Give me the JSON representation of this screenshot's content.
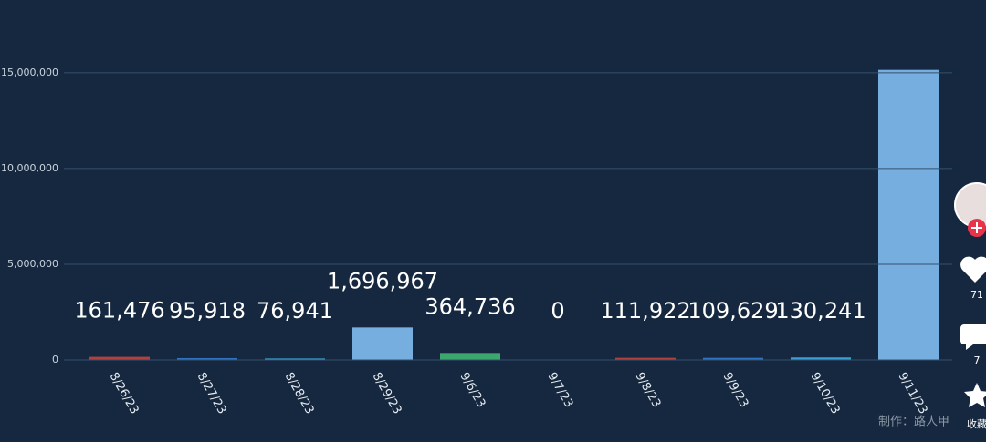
{
  "chart_data": {
    "type": "bar",
    "categories": [
      "8/26/23",
      "8/27/23",
      "8/28/23",
      "8/29/23",
      "9/6/23",
      "9/7/23",
      "9/8/23",
      "9/9/23",
      "9/10/23",
      "9/11/23"
    ],
    "values": [
      161476,
      95918,
      76941,
      1696967,
      364736,
      0,
      111922,
      109629,
      130241,
      15150000
    ],
    "value_labels": [
      "161,476",
      "95,918",
      "76,941",
      "1,696,967",
      "364,736",
      "0",
      "111,922",
      "109,629",
      "130,241",
      null
    ],
    "colors": [
      "#b0413e",
      "#2f74c0",
      "#3a9fd2",
      "#76aee0",
      "#3da86e",
      "#3a9fd2",
      "#b0413e",
      "#2f74c0",
      "#3a9fd2",
      "#76aee0"
    ],
    "ylim": [
      0,
      18800000
    ],
    "yticks": [
      0,
      {
        "value": 5000000,
        "label": "5,000,000"
      },
      {
        "value": 10000000,
        "label": "10,000,000"
      },
      {
        "value": 15000000,
        "label": "15,000,000"
      }
    ],
    "grid": true
  },
  "overlay": {
    "likes": 71,
    "comments": 7,
    "favorite": "收藏",
    "watermark": "制作：路人甲"
  }
}
